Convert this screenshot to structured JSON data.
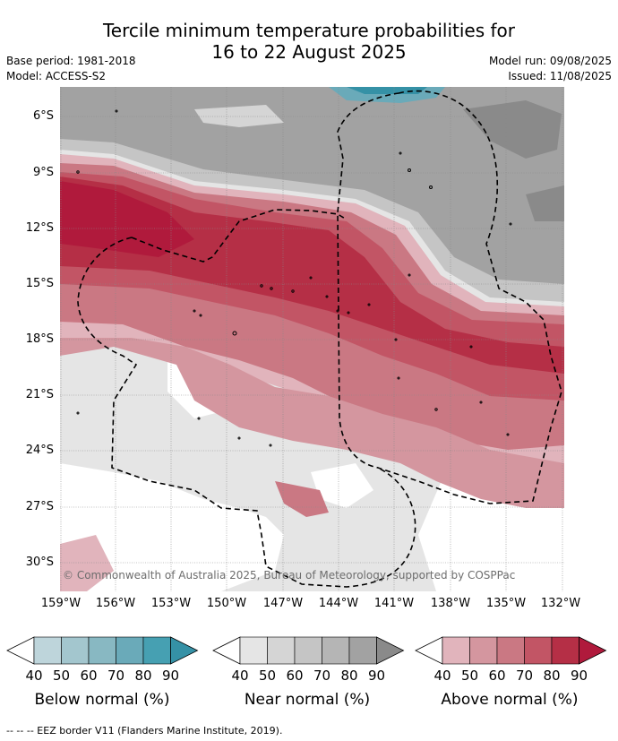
{
  "title_line1": "Tercile minimum temperature probabilities for",
  "title_line2": "16 to 22 August 2025",
  "base_period": "Base period: 1981-2018",
  "model": "Model: ACCESS-S2",
  "model_run": "Model run: 09/08/2025",
  "issued": "Issued: 11/08/2025",
  "lat_labels": [
    "6°S",
    "9°S",
    "12°S",
    "15°S",
    "18°S",
    "21°S",
    "24°S",
    "27°S",
    "30°S"
  ],
  "lon_labels": [
    "159°W",
    "156°W",
    "153°W",
    "150°W",
    "147°W",
    "144°W",
    "141°W",
    "138°W",
    "135°W",
    "132°W"
  ],
  "copyright": "© Commonwealth of Australia 2025, Bureau of Meteorology, supported by COSPPac",
  "colorbars": [
    {
      "title": "Below normal (%)",
      "ticks": [
        "40",
        "50",
        "60",
        "70",
        "80",
        "90"
      ],
      "colors": [
        "#ffffff",
        "#bed5db",
        "#a3c6ce",
        "#88b8c2",
        "#6aaab9",
        "#46a0b2",
        "#3591a6"
      ]
    },
    {
      "title": "Near normal (%)",
      "ticks": [
        "40",
        "50",
        "60",
        "70",
        "80",
        "90"
      ],
      "colors": [
        "#ffffff",
        "#e5e5e5",
        "#d5d5d5",
        "#c5c5c5",
        "#b5b5b5",
        "#a2a2a2",
        "#8a8a8a"
      ]
    },
    {
      "title": "Above normal (%)",
      "ticks": [
        "40",
        "50",
        "60",
        "70",
        "80",
        "90"
      ],
      "colors": [
        "#ffffff",
        "#e1b4bc",
        "#d4969f",
        "#ca7883",
        "#c25565",
        "#b52f46",
        "#b01a3c"
      ]
    }
  ],
  "footnote": "-- -- -- EEZ border V11 (Flanders Marine Institute, 2019)."
}
